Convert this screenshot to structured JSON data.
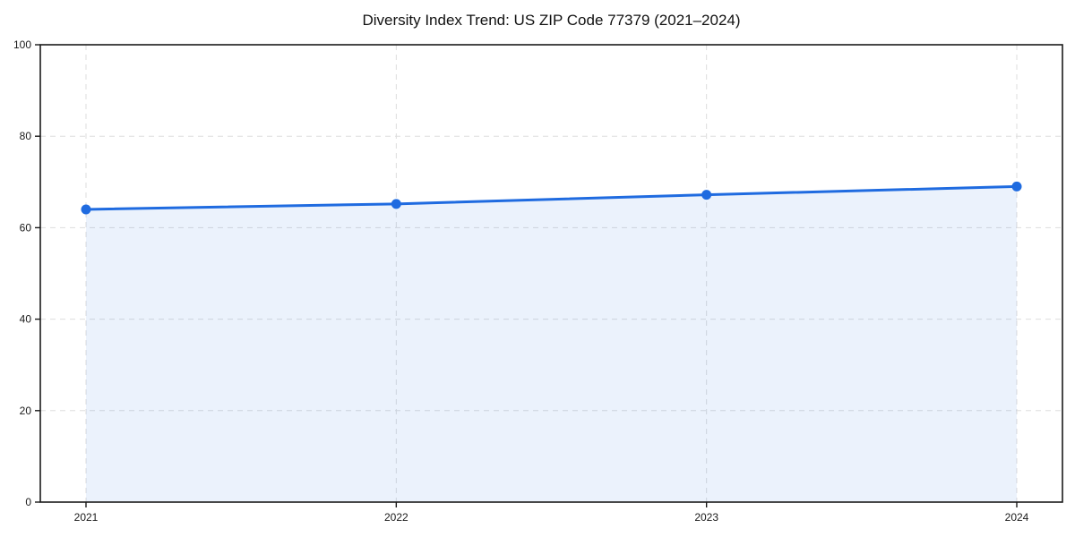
{
  "chart_data": {
    "type": "area",
    "title": "Diversity Index Trend: US ZIP Code 77379 (2021–2024)",
    "series_name": "Diversity Index",
    "x": [
      2021,
      2022,
      2023,
      2024
    ],
    "xtick_labels": [
      "2021",
      "2022",
      "2023",
      "2024"
    ],
    "values": [
      64.0,
      65.2,
      67.2,
      69.0
    ],
    "ylim": [
      0,
      100
    ],
    "yticks": [
      0,
      20,
      40,
      60,
      80,
      100
    ],
    "xlabel": "",
    "ylabel": "",
    "legend_position": "none",
    "grid": "dashed",
    "line_color": "#1f6be0",
    "marker_color": "#1f6be0",
    "fill_color": "#1f6be0",
    "fill_opacity": 0.09,
    "gridline_color": "#dddddd",
    "spine_color": "#1a1a1a",
    "background_color": "#ffffff"
  }
}
